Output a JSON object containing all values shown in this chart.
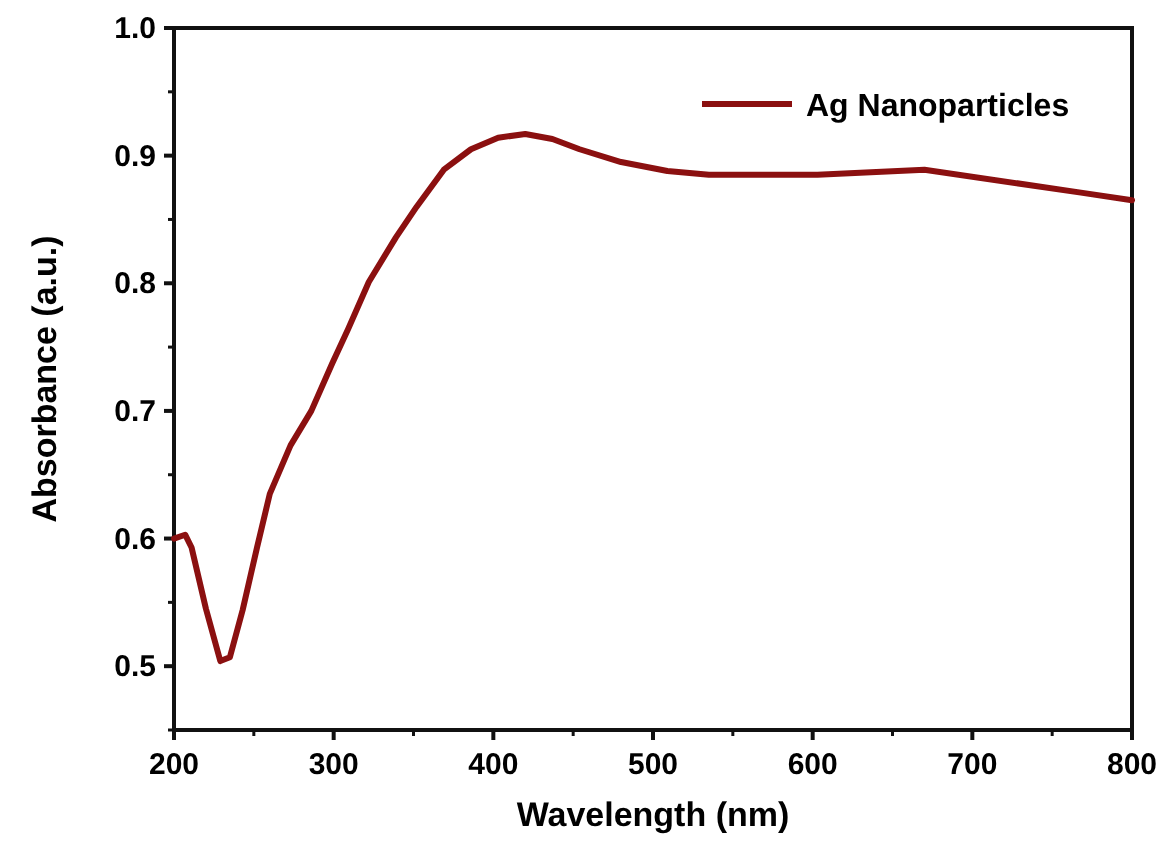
{
  "chart_data": {
    "type": "line",
    "xlabel": "Wavelength (nm)",
    "ylabel": "Absorbance (a.u.)",
    "x": [
      200,
      207,
      211,
      220,
      229,
      235,
      243,
      252,
      260,
      273,
      286,
      299,
      309,
      322,
      339,
      352,
      369,
      386,
      403,
      420,
      437,
      454,
      480,
      509,
      535,
      603,
      670,
      768,
      800
    ],
    "series": [
      {
        "name": "Ag Nanoparticles",
        "color": "#8b1010",
        "values": [
          0.6,
          0.603,
          0.593,
          0.545,
          0.504,
          0.507,
          0.544,
          0.593,
          0.635,
          0.673,
          0.7,
          0.737,
          0.764,
          0.801,
          0.836,
          0.86,
          0.889,
          0.905,
          0.914,
          0.917,
          0.913,
          0.905,
          0.895,
          0.888,
          0.885,
          0.885,
          0.889,
          0.871,
          0.865
        ]
      }
    ],
    "xlim": [
      200,
      800
    ],
    "xticks": [
      200,
      300,
      400,
      500,
      600,
      700,
      800
    ],
    "ylim": [
      0.45,
      1.0
    ],
    "yticks": [
      0.5,
      0.6,
      0.7,
      0.8,
      0.9,
      {
        "value": 1,
        "label": "1.0"
      }
    ],
    "legend": "top right",
    "grid": false,
    "line_style": "solid",
    "marker": "none"
  }
}
